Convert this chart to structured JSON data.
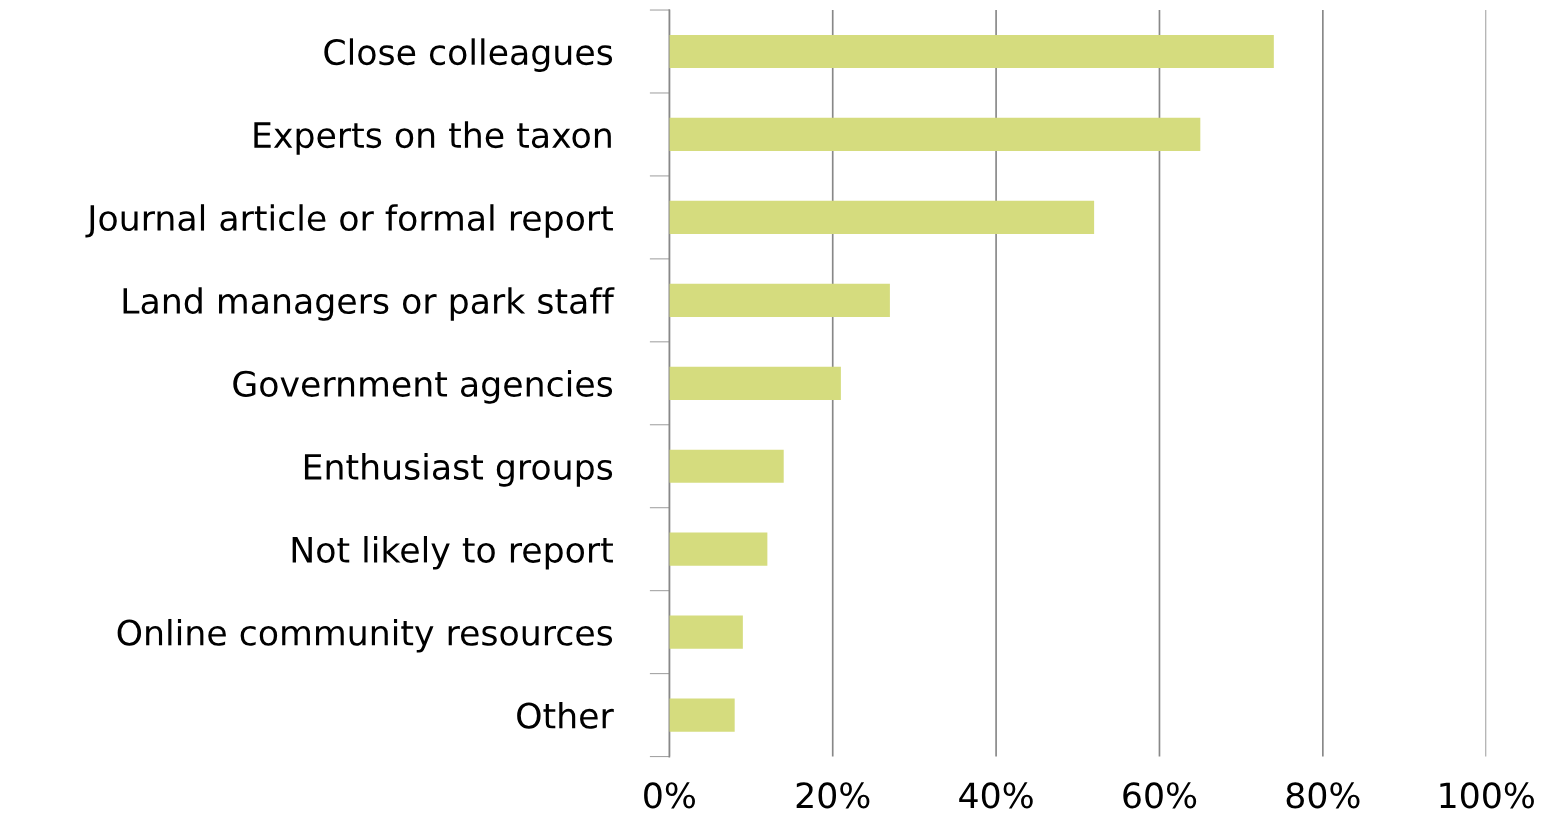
{
  "chart_data": {
    "type": "bar",
    "orientation": "horizontal",
    "categories": [
      "Close colleagues",
      "Experts on the taxon",
      "Journal article or formal report",
      "Land managers or park staff",
      "Government agencies",
      "Enthusiast groups",
      "Not likely to report",
      "Online community resources",
      "Other"
    ],
    "values": [
      74,
      65,
      52,
      27,
      21,
      14,
      12,
      9,
      8
    ],
    "color": "#d5dc7e",
    "xlim": [
      0,
      100
    ],
    "xticks": [
      {
        "value": 0,
        "label": "0%"
      },
      {
        "value": 20,
        "label": "20%"
      },
      {
        "value": 40,
        "label": "40%"
      },
      {
        "value": 60,
        "label": "60%"
      },
      {
        "value": 80,
        "label": "80%"
      },
      {
        "value": 100,
        "label": "100%"
      }
    ],
    "grid": "x"
  }
}
